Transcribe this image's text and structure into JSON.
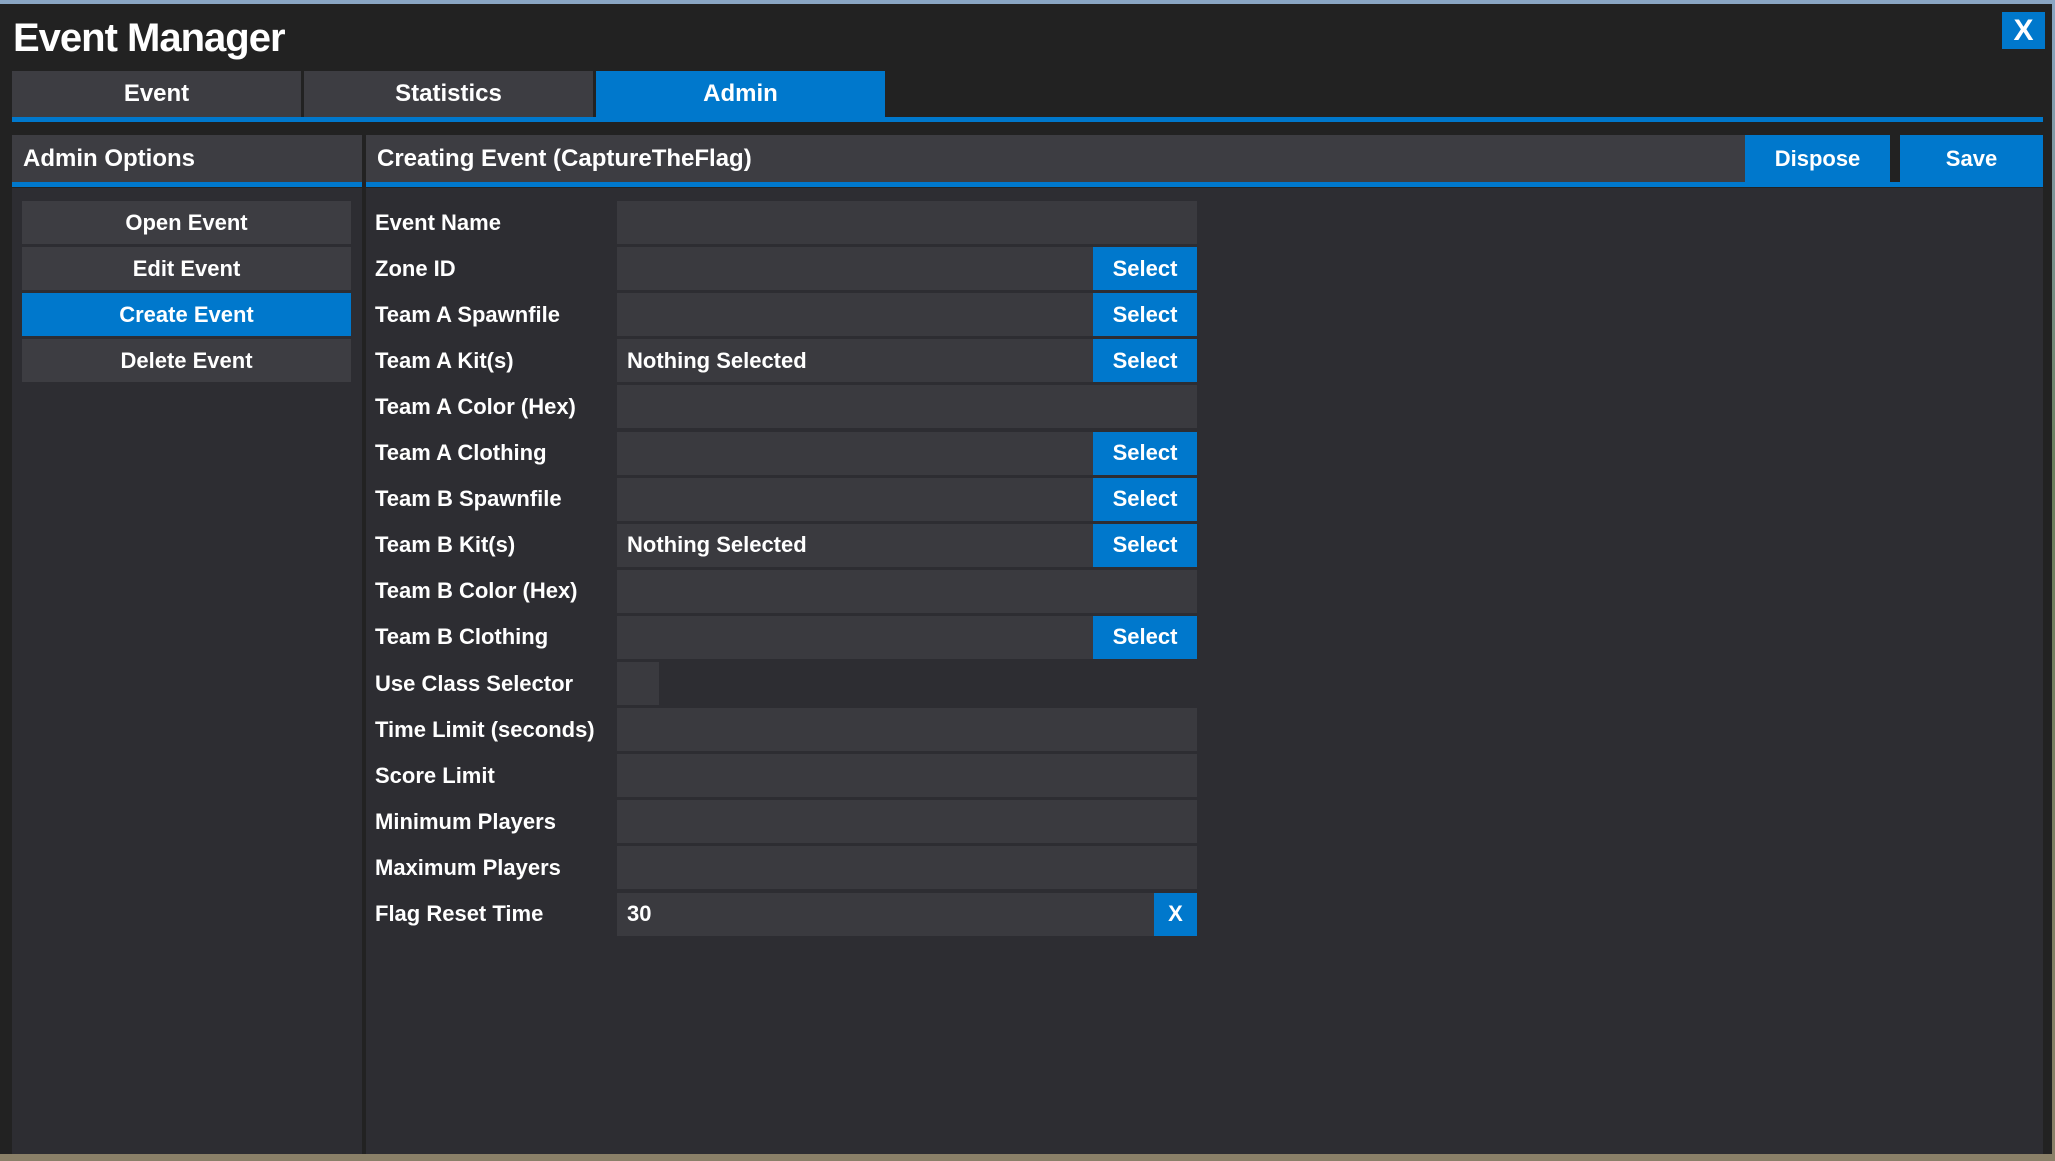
{
  "window": {
    "title": "Event Manager",
    "close_label": "X"
  },
  "tabs": [
    {
      "label": "Event",
      "active": false
    },
    {
      "label": "Statistics",
      "active": false
    },
    {
      "label": "Admin",
      "active": true
    }
  ],
  "sidebar": {
    "title": "Admin Options",
    "items": [
      {
        "label": "Open Event"
      },
      {
        "label": "Edit Event"
      },
      {
        "label": "Create Event",
        "active": true
      },
      {
        "label": "Delete Event"
      }
    ]
  },
  "main": {
    "title": "Creating Event (CaptureTheFlag)",
    "dispose_label": "Dispose",
    "save_label": "Save",
    "fields": [
      {
        "label": "Event Name",
        "type": "text",
        "value": ""
      },
      {
        "label": "Zone ID",
        "type": "select",
        "value": "",
        "button": "Select"
      },
      {
        "label": "Team A Spawnfile",
        "type": "select",
        "value": "",
        "button": "Select"
      },
      {
        "label": "Team A Kit(s)",
        "type": "select",
        "value": "Nothing Selected",
        "button": "Select"
      },
      {
        "label": "Team A Color (Hex)",
        "type": "text",
        "value": ""
      },
      {
        "label": "Team A Clothing",
        "type": "select",
        "value": "",
        "button": "Select"
      },
      {
        "label": "Team B Spawnfile",
        "type": "select",
        "value": "",
        "button": "Select"
      },
      {
        "label": "Team B Kit(s)",
        "type": "select",
        "value": "Nothing Selected",
        "button": "Select"
      },
      {
        "label": "Team B Color (Hex)",
        "type": "text",
        "value": ""
      },
      {
        "label": "Team B Clothing",
        "type": "select",
        "value": "",
        "button": "Select"
      },
      {
        "label": "Use Class Selector",
        "type": "checkbox",
        "checked": false
      },
      {
        "label": "Time Limit (seconds)",
        "type": "text",
        "value": ""
      },
      {
        "label": "Score Limit",
        "type": "text",
        "value": ""
      },
      {
        "label": "Minimum Players",
        "type": "text",
        "value": ""
      },
      {
        "label": "Maximum Players",
        "type": "text",
        "value": ""
      },
      {
        "label": "Flag Reset Time",
        "type": "clearable",
        "value": "30",
        "button": "X"
      }
    ]
  },
  "colors": {
    "accent": "#0078cc",
    "window": "#222222",
    "panel": "#2d2d32",
    "control": "#3d3d42"
  }
}
